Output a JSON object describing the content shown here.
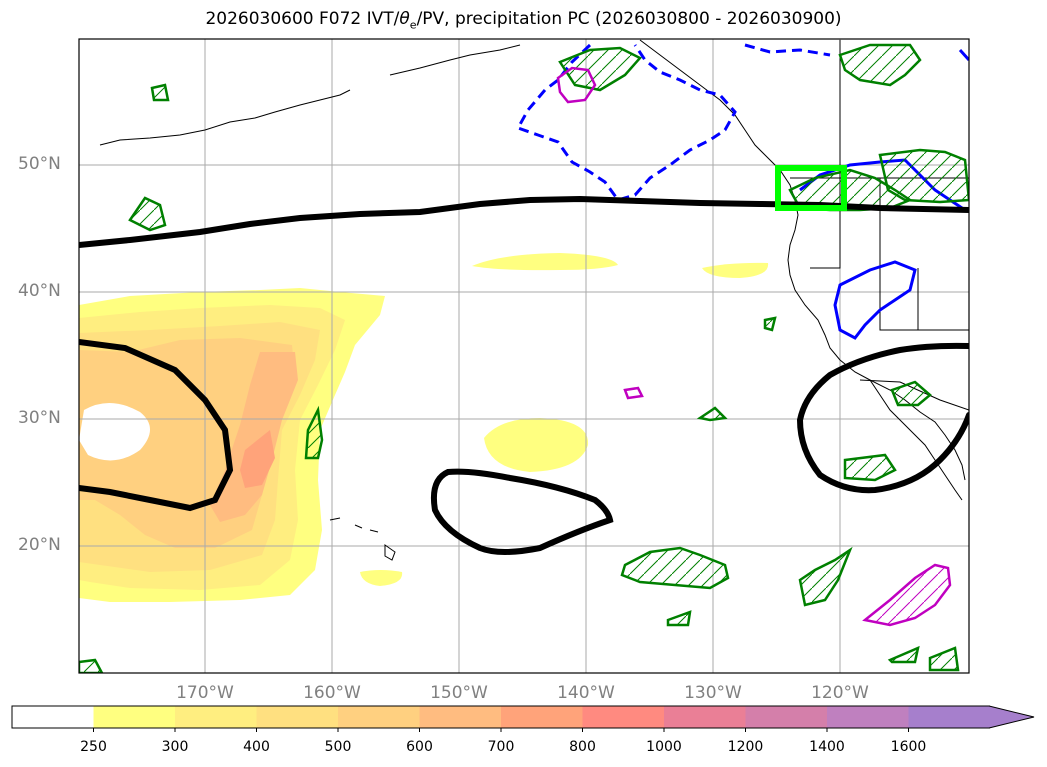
{
  "title_prefix": "2026030600 F072 IVT/",
  "title_theta": "θ",
  "title_sub": "e",
  "title_suffix": "/PV, precipitation PC (2026030800 - 2026030900)",
  "lat_labels": [
    "50°N",
    "40°N",
    "30°N",
    "20°N"
  ],
  "lon_labels": [
    "170°W",
    "160°W",
    "150°W",
    "140°W",
    "130°W",
    "120°W"
  ],
  "colorbar": {
    "ticks": [
      "250",
      "300",
      "400",
      "500",
      "600",
      "700",
      "800",
      "1000",
      "1200",
      "1400",
      "1600"
    ],
    "colors": [
      "#ffffff",
      "#ffff80",
      "#ffee80",
      "#ffe080",
      "#ffd080",
      "#ffbc80",
      "#ffa37a",
      "#ff8a80",
      "#ea7f96",
      "#d47faa",
      "#bf80bf",
      "#a67fcc"
    ]
  },
  "legend_colors": {
    "theta_e_pv": "#000000",
    "precip_positive": "#008000",
    "precip_negative": "#0000ff",
    "magenta": "#c000c0",
    "target_box": "#00ff00",
    "coast": "#000000",
    "grid": "#aaaaaa"
  }
}
